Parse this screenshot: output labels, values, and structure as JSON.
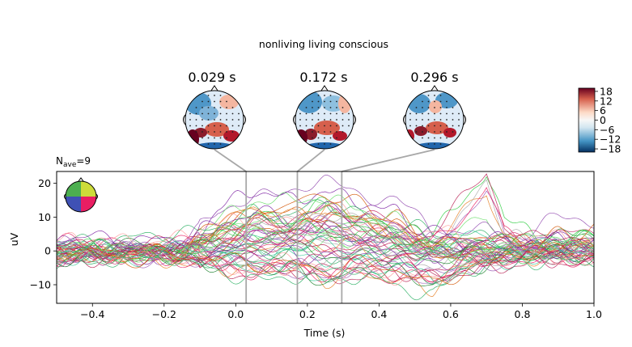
{
  "figure": {
    "suptitle": "nonliving living conscious",
    "nave_base": "N",
    "nave_sub": "ave",
    "nave_value": "=9"
  },
  "topomaps": [
    {
      "title": "0.029 s",
      "time": 0.029
    },
    {
      "title": "0.172 s",
      "time": 0.172
    },
    {
      "title": "0.296 s",
      "time": 0.296
    }
  ],
  "colorbar": {
    "ticks": [
      "18",
      "12",
      "6",
      "0",
      "−6",
      "−12",
      "−18"
    ],
    "range": [
      -20,
      20
    ],
    "colors": [
      "#67001f",
      "#d6604d",
      "#fddbc7",
      "#f7f7f7",
      "#d1e5f0",
      "#4393c3",
      "#053061"
    ]
  },
  "chart_data": {
    "type": "line",
    "title": "",
    "xlabel": "Time (s)",
    "ylabel": "uV",
    "xlim": [
      -0.5,
      1.0
    ],
    "ylim": [
      -15.5,
      23.5
    ],
    "xticks": [
      "−0.4",
      "−0.2",
      "0.0",
      "0.2",
      "0.4",
      "0.6",
      "0.8",
      "1.0"
    ],
    "xtick_values": [
      -0.4,
      -0.2,
      0.0,
      0.2,
      0.4,
      0.6,
      0.8,
      1.0
    ],
    "yticks": [
      "−10",
      "0",
      "10",
      "20"
    ],
    "ytick_values": [
      -10,
      0,
      10,
      20
    ],
    "vlines": [
      0.029,
      0.172,
      0.296
    ],
    "n_channels": 60,
    "colors": [
      "#1a7f2a",
      "#7b1fa2",
      "#c2185b",
      "#2ecc40",
      "#e67e22",
      "#9b59b6",
      "#e91e63",
      "#27ae60",
      "#ff9999",
      "#8e44ad",
      "#d35400",
      "#66dd66",
      "#aaaaaa",
      "#b71c50",
      "#33cc99"
    ],
    "series": [
      {
        "values": [
          [
            -0.5,
            2
          ],
          [
            -0.3,
            1
          ],
          [
            -0.15,
            -1
          ],
          [
            -0.05,
            12
          ],
          [
            0.05,
            15
          ],
          [
            0.15,
            17
          ],
          [
            0.25,
            19
          ],
          [
            0.35,
            17
          ],
          [
            0.45,
            14
          ],
          [
            0.55,
            4
          ],
          [
            0.65,
            5
          ],
          [
            0.7,
            6
          ],
          [
            0.8,
            3
          ],
          [
            0.9,
            8
          ],
          [
            1.0,
            9
          ]
        ]
      },
      {
        "values": [
          [
            -0.5,
            0
          ],
          [
            -0.3,
            -1
          ],
          [
            -0.15,
            -2
          ],
          [
            -0.05,
            10
          ],
          [
            0.05,
            16
          ],
          [
            0.15,
            14
          ],
          [
            0.25,
            17
          ],
          [
            0.35,
            13
          ],
          [
            0.45,
            9
          ],
          [
            0.55,
            1
          ],
          [
            0.65,
            2
          ],
          [
            0.8,
            1
          ],
          [
            1.0,
            2
          ]
        ]
      },
      {
        "values": [
          [
            -0.5,
            -1
          ],
          [
            -0.3,
            0
          ],
          [
            -0.15,
            0
          ],
          [
            -0.05,
            5
          ],
          [
            0.05,
            11
          ],
          [
            0.15,
            10
          ],
          [
            0.25,
            14
          ],
          [
            0.35,
            10
          ],
          [
            0.45,
            6
          ],
          [
            0.55,
            0
          ],
          [
            0.65,
            -1
          ],
          [
            0.8,
            0
          ],
          [
            1.0,
            1
          ]
        ]
      },
      {
        "values": [
          [
            -0.5,
            1
          ],
          [
            -0.3,
            0
          ],
          [
            -0.15,
            1
          ],
          [
            -0.05,
            2
          ],
          [
            0.05,
            3
          ],
          [
            0.15,
            5
          ],
          [
            0.25,
            4
          ],
          [
            0.35,
            2
          ],
          [
            0.45,
            0
          ],
          [
            0.55,
            4
          ],
          [
            0.65,
            14
          ],
          [
            0.7,
            21
          ],
          [
            0.75,
            6
          ],
          [
            0.85,
            2
          ],
          [
            1.0,
            3
          ]
        ]
      },
      {
        "values": [
          [
            -0.5,
            -3
          ],
          [
            -0.3,
            -2
          ],
          [
            -0.15,
            -3
          ],
          [
            -0.05,
            -5
          ],
          [
            0.05,
            -8
          ],
          [
            0.15,
            -7
          ],
          [
            0.25,
            -10
          ],
          [
            0.35,
            -7
          ],
          [
            0.45,
            -9
          ],
          [
            0.55,
            -12
          ],
          [
            0.65,
            -6
          ],
          [
            0.8,
            -3
          ],
          [
            1.0,
            -2
          ]
        ]
      },
      {
        "values": [
          [
            -0.5,
            -2
          ],
          [
            -0.3,
            -1
          ],
          [
            -0.15,
            -2
          ],
          [
            -0.05,
            -4
          ],
          [
            0.05,
            -6
          ],
          [
            0.15,
            -5
          ],
          [
            0.25,
            -8
          ],
          [
            0.35,
            -6
          ],
          [
            0.45,
            -7
          ],
          [
            0.55,
            -9
          ],
          [
            0.65,
            -5
          ],
          [
            0.8,
            -2
          ],
          [
            1.0,
            -1
          ]
        ]
      },
      {
        "values": [
          [
            -0.5,
            3
          ],
          [
            -0.3,
            2
          ],
          [
            -0.15,
            4
          ],
          [
            -0.05,
            6
          ],
          [
            0.05,
            9
          ],
          [
            0.15,
            7
          ],
          [
            0.25,
            12
          ],
          [
            0.35,
            9
          ],
          [
            0.45,
            5
          ],
          [
            0.55,
            3
          ],
          [
            0.65,
            3
          ],
          [
            0.8,
            2
          ],
          [
            1.0,
            1
          ]
        ]
      },
      {
        "values": [
          [
            -0.5,
            -1
          ],
          [
            -0.3,
            -2
          ],
          [
            -0.15,
            -1
          ],
          [
            -0.05,
            -3
          ],
          [
            0.05,
            -4
          ],
          [
            0.15,
            -3
          ],
          [
            0.25,
            -5
          ],
          [
            0.35,
            -4
          ],
          [
            0.45,
            -6
          ],
          [
            0.55,
            -10
          ],
          [
            0.65,
            -4
          ],
          [
            0.8,
            -1
          ],
          [
            1.0,
            0
          ]
        ]
      }
    ]
  }
}
